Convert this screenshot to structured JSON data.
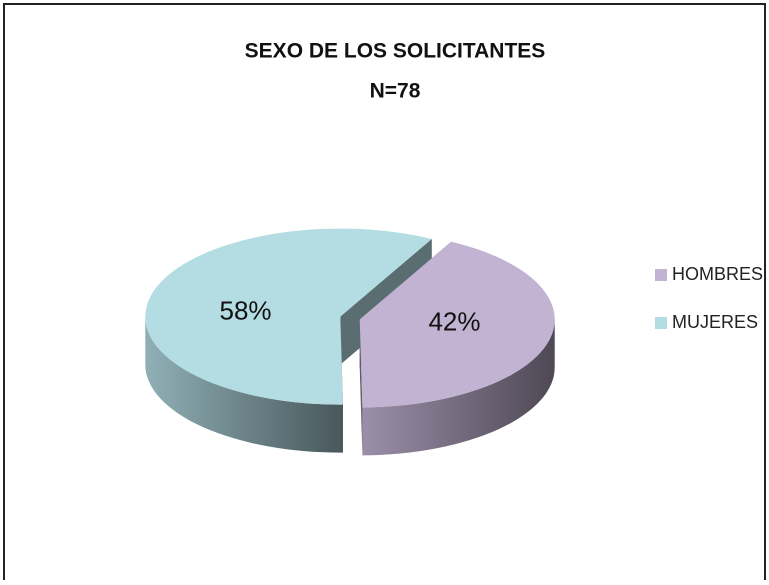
{
  "chart_data": {
    "type": "pie",
    "title": "SEXO DE LOS SOLICITANTES",
    "subtitle": "N=78",
    "categories": [
      "HOMBRES",
      "MUJERES"
    ],
    "values": [
      42,
      58
    ],
    "value_labels": [
      "42%",
      "58%"
    ],
    "colors": [
      "#c3b3d3",
      "#b4dce3"
    ],
    "legend": "right"
  }
}
